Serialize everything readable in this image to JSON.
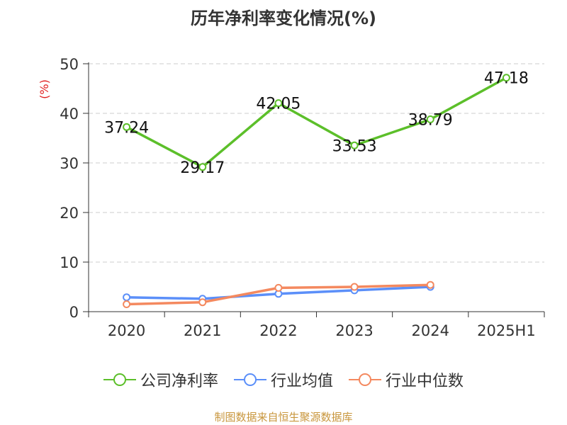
{
  "chart_data": {
    "type": "line",
    "title": "历年净利率变化情况(%)",
    "ylabel": "(%)",
    "categories": [
      "2020",
      "2021",
      "2022",
      "2023",
      "2024",
      "2025H1"
    ],
    "ylim": [
      0,
      50
    ],
    "yticks": [
      0,
      10,
      20,
      30,
      40,
      50
    ],
    "grid": true,
    "legend_position": "bottom",
    "series": [
      {
        "name": "公司净利率",
        "color": "#5cbf2a",
        "values": [
          37.24,
          29.17,
          42.05,
          33.53,
          38.79,
          47.18
        ],
        "labels": [
          "37.24",
          "29.17",
          "42.05",
          "33.53",
          "38.79",
          "47.18"
        ]
      },
      {
        "name": "行业均值",
        "color": "#5b8ff9",
        "values": [
          2.9,
          2.6,
          3.6,
          4.3,
          5.0,
          null
        ]
      },
      {
        "name": "行业中位数",
        "color": "#f4895f",
        "values": [
          1.5,
          1.9,
          4.8,
          5.0,
          5.4,
          null
        ]
      }
    ]
  },
  "source": "制图数据来自恒生聚源数据库"
}
